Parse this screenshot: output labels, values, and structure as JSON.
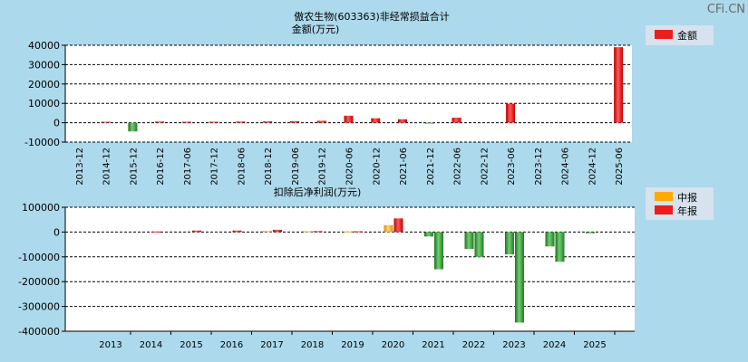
{
  "watermark": "CFi.CN",
  "colors": {
    "actual": "#ee1c1c",
    "interim": "#ffaa00",
    "negative": "#2f9e30",
    "background": "#acd9eb",
    "plot_background": "#ffffff"
  },
  "chart_data": [
    {
      "type": "bar",
      "title": "傲农生物(603363)非经常损益合计",
      "subtitle": "金额(万元)",
      "legend": {
        "position": "top-right",
        "entries": [
          "金额"
        ]
      },
      "grid": true,
      "ylim": [
        -10000,
        40000
      ],
      "yticks": [
        "40000",
        "30000",
        "20000",
        "10000",
        "0",
        "-10000"
      ],
      "ytick_values": [
        40000,
        30000,
        20000,
        10000,
        0,
        -10000
      ],
      "categories": [
        "2013-12",
        "2014-12",
        "2015-12",
        "2016-12",
        "2017-06",
        "2017-12",
        "2018-06",
        "2018-12",
        "2019-06",
        "2019-12",
        "2020-06",
        "2020-12",
        "2021-06",
        "2021-12",
        "2022-06",
        "2022-12",
        "2023-06",
        "2023-12",
        "2024-06",
        "2024-12",
        "2025-06"
      ],
      "series": [
        {
          "name": "金额",
          "values": [
            0,
            500,
            -4500,
            600,
            500,
            500,
            600,
            700,
            800,
            1000,
            3600,
            2300,
            1800,
            -300,
            2600,
            0,
            9800,
            0,
            0,
            0,
            39000
          ]
        }
      ]
    },
    {
      "type": "bar",
      "title": "扣除后净利润(万元)",
      "legend": {
        "position": "top-right",
        "entries": [
          "中报",
          "年报"
        ]
      },
      "grid": true,
      "ylim": [
        -400000,
        100000
      ],
      "yticks": [
        "100000",
        "0",
        "-100000",
        "-200000",
        "-300000",
        "-400000"
      ],
      "ytick_values": [
        100000,
        0,
        -100000,
        -200000,
        -300000,
        -400000
      ],
      "categories": [
        "2013",
        "2014",
        "2015",
        "2016",
        "2017",
        "2018",
        "2019",
        "2020",
        "2021",
        "2022",
        "2023",
        "2024",
        "2025"
      ],
      "series": [
        {
          "name": "中报",
          "values": [
            null,
            null,
            null,
            null,
            4000,
            3000,
            2000,
            28000,
            -18000,
            -68000,
            -90000,
            -58000,
            -5000
          ]
        },
        {
          "name": "年报",
          "values": [
            null,
            2000,
            6000,
            6000,
            9000,
            4000,
            3000,
            55000,
            -150000,
            -100000,
            -365000,
            -120000,
            null
          ]
        }
      ]
    }
  ]
}
